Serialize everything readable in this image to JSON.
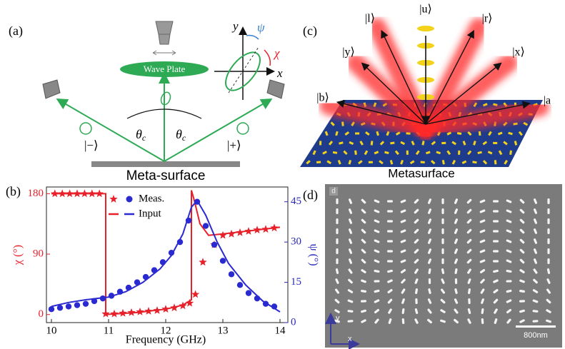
{
  "panel_a": {
    "label": "(a)",
    "wave_plate": "Wave Plate",
    "surface": "Meta-surface",
    "theta": {
      "symbol": "θ",
      "sub": "c"
    },
    "minus": "|−⟩",
    "plus": "|+⟩",
    "axis_x": "x",
    "axis_y": "y",
    "psi": "ψ",
    "chi": "χ"
  },
  "panel_c": {
    "label": "(c)",
    "surface": "Metasurface",
    "kets": [
      "|u⟩",
      "|l⟩",
      "|r⟩",
      "|y⟩",
      "|x⟩",
      "|b⟩",
      "|a"
    ]
  },
  "panel_d": {
    "label": "(d)",
    "inset_label": "d",
    "scale": "800nm",
    "axis_x": "x",
    "axis_y": "y"
  },
  "chart_data": {
    "type": "line",
    "label": "(b)",
    "xlabel": "Frequency (GHz)",
    "ylabel": "χ (°)",
    "y2label": "ψ (°)",
    "xlim": [
      10,
      14
    ],
    "xticks": [
      10,
      11,
      12,
      13,
      14
    ],
    "ylim": [
      -12,
      190
    ],
    "yticks": [
      0,
      90,
      180
    ],
    "y2lim": [
      0,
      50.5
    ],
    "y2ticks": [
      0,
      15,
      30,
      45
    ],
    "y_color": "#e8202a",
    "y2_color": "#2a2ab8",
    "series": [
      {
        "name": "Meas.",
        "style": "star",
        "color": "#e8202a",
        "x": [
          10.06,
          10.19,
          10.32,
          10.45,
          10.58,
          10.71,
          10.84,
          10.95,
          11.1,
          11.25,
          11.4,
          11.55,
          11.7,
          11.85,
          12.0,
          12.15,
          12.3,
          12.42,
          12.52,
          12.65,
          12.85,
          13.0,
          13.15,
          13.3,
          13.45,
          13.6,
          13.75,
          13.9
        ],
        "values": [
          180,
          180,
          180,
          180,
          180,
          180,
          180,
          1,
          1,
          2,
          3,
          4,
          5,
          6,
          8,
          10,
          13,
          17,
          30,
          78,
          104,
          118,
          120,
          122,
          124,
          126,
          127,
          129
        ]
      },
      {
        "name": "Input",
        "style": "line",
        "color": "#e8202a",
        "x": [
          10,
          10.95,
          10.95,
          11.5,
          12.0,
          12.3,
          12.45,
          12.45,
          12.5,
          12.6,
          12.75,
          13.0,
          13.5,
          14.0
        ],
        "values": [
          180,
          180,
          0,
          3,
          8,
          14,
          22,
          185,
          170,
          135,
          118,
          120,
          125,
          130
        ]
      },
      {
        "style": "circle",
        "color": "#2a2ad0",
        "axis": "y2",
        "x": [
          10.0,
          10.15,
          10.3,
          10.45,
          10.6,
          10.75,
          10.9,
          11.05,
          11.2,
          11.35,
          11.5,
          11.65,
          11.8,
          11.95,
          12.1,
          12.25,
          12.4,
          12.55,
          12.7,
          12.85,
          13.0,
          13.15,
          13.3,
          13.45,
          13.6,
          13.75,
          13.9
        ],
        "values": [
          5,
          5.5,
          6,
          6.5,
          7,
          8,
          9,
          10,
          11.5,
          13,
          15,
          17,
          19.5,
          22.5,
          26,
          30,
          38,
          45,
          36,
          29,
          23,
          18,
          14,
          11,
          9,
          7,
          6
        ]
      },
      {
        "style": "line",
        "color": "#2a2ad0",
        "axis": "y2",
        "x": [
          10,
          10.3,
          10.6,
          11,
          11.3,
          11.6,
          11.9,
          12.1,
          12.3,
          12.45,
          12.55,
          12.7,
          12.9,
          13.1,
          13.4,
          13.7,
          14
        ],
        "values": [
          6,
          7.5,
          8.5,
          9.5,
          11.5,
          15,
          20,
          25,
          33,
          43,
          45.5,
          40,
          30,
          22,
          14,
          8,
          4
        ]
      }
    ]
  }
}
